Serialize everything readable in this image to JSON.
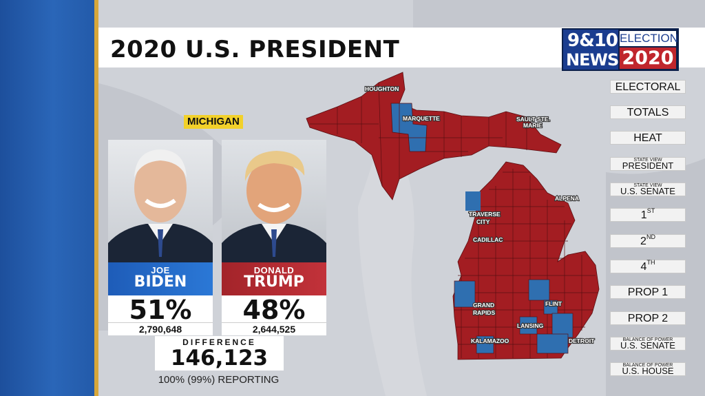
{
  "header": {
    "title": "2020 U.S. PRESIDENT"
  },
  "logo": {
    "station_top": "9&10",
    "station_bottom": "NEWS",
    "election_label": "ELECTION",
    "year": "2020"
  },
  "state": {
    "name": "MICHIGAN"
  },
  "candidates": [
    {
      "first": "JOE",
      "last": "BIDEN",
      "percent": "51%",
      "votes": "2,790,648",
      "party_color": "#1f62c0"
    },
    {
      "first": "DONALD",
      "last": "TRUMP",
      "percent": "48%",
      "votes": "2,644,525",
      "party_color": "#b5232b"
    }
  ],
  "difference": {
    "label": "DIFFERENCE",
    "value": "146,123"
  },
  "reporting": "100% (99%) REPORTING",
  "menu": [
    {
      "main": "ELECTORAL"
    },
    {
      "main": "TOTALS"
    },
    {
      "main": "HEAT"
    },
    {
      "small": "STATE VIEW",
      "main": "PRESIDENT"
    },
    {
      "small": "STATE VIEW",
      "main": "U.S. SENATE"
    },
    {
      "main": "1",
      "sup": "ST"
    },
    {
      "main": "2",
      "sup": "ND"
    },
    {
      "main": "4",
      "sup": "TH"
    },
    {
      "main": "PROP 1"
    },
    {
      "main": "PROP 2"
    },
    {
      "small": "BALANCE OF POWER",
      "main": "U.S. SENATE"
    },
    {
      "small": "BALANCE OF POWER",
      "main": "U.S. HOUSE"
    }
  ],
  "map": {
    "cities": [
      "HOUGHTON",
      "MARQUETTE",
      "SAULT STE.",
      "MARIE",
      "ALPENA",
      "TRAVERSE",
      "CITY",
      "CADILLAC",
      "GRAND",
      "RAPIDS",
      "FLINT",
      "LANSING",
      "KALAMAZOO",
      "DETROIT"
    ],
    "colors": {
      "republican": "#a31d22",
      "democrat": "#2f6fb0"
    }
  }
}
